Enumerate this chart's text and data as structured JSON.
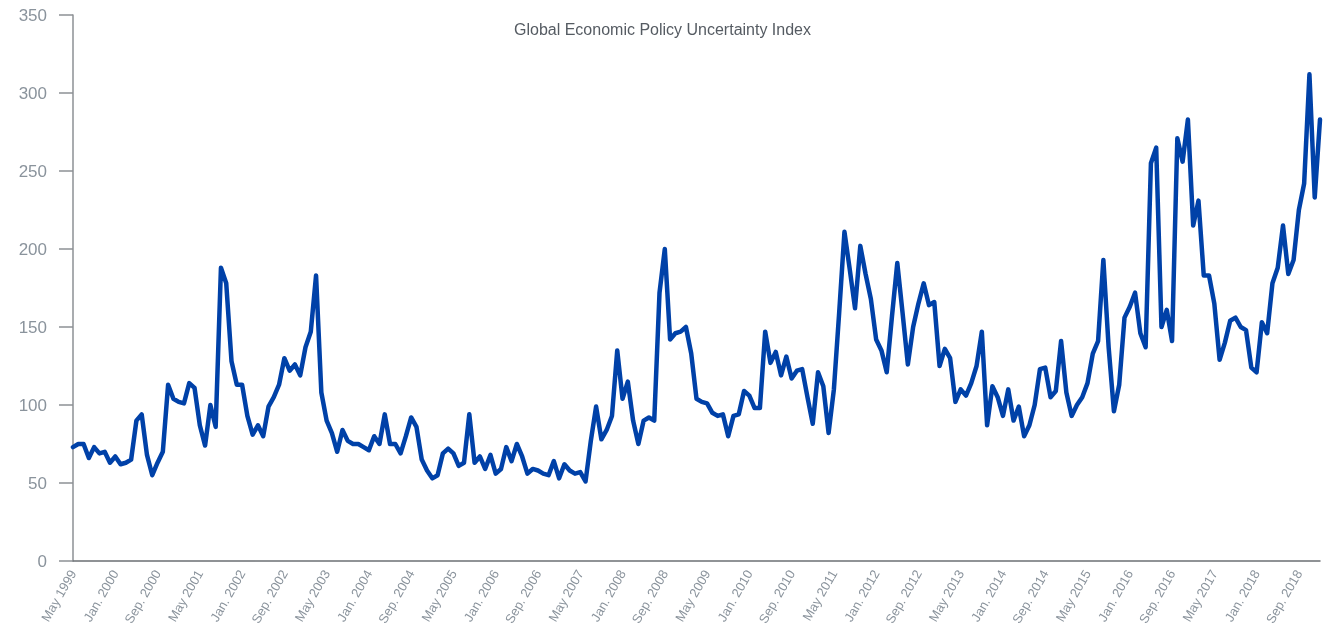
{
  "chart_data": {
    "type": "line",
    "title": "Global Economic Policy Uncertainty Index",
    "categories": [
      "May 1999",
      null,
      null,
      null,
      null,
      null,
      null,
      null,
      "Jan. 2000",
      null,
      null,
      null,
      null,
      null,
      null,
      null,
      "Sep. 2000",
      null,
      null,
      null,
      null,
      null,
      null,
      null,
      "May 2001",
      null,
      null,
      null,
      null,
      null,
      null,
      null,
      "Jan. 2002",
      null,
      null,
      null,
      null,
      null,
      null,
      null,
      "Sep. 2002",
      null,
      null,
      null,
      null,
      null,
      null,
      null,
      "May 2003",
      null,
      null,
      null,
      null,
      null,
      null,
      null,
      "Jan. 2004",
      null,
      null,
      null,
      null,
      null,
      null,
      null,
      "Sep. 2004",
      null,
      null,
      null,
      null,
      null,
      null,
      null,
      "May 2005",
      null,
      null,
      null,
      null,
      null,
      null,
      null,
      "Jan. 2006",
      null,
      null,
      null,
      null,
      null,
      null,
      null,
      "Sep. 2006",
      null,
      null,
      null,
      null,
      null,
      null,
      null,
      "May 2007",
      null,
      null,
      null,
      null,
      null,
      null,
      null,
      "Jan. 2008",
      null,
      null,
      null,
      null,
      null,
      null,
      null,
      "Sep. 2008",
      null,
      null,
      null,
      null,
      null,
      null,
      null,
      "May 2009",
      null,
      null,
      null,
      null,
      null,
      null,
      null,
      "Jan. 2010",
      null,
      null,
      null,
      null,
      null,
      null,
      null,
      "Sep. 2010",
      null,
      null,
      null,
      null,
      null,
      null,
      null,
      "May 2011",
      null,
      null,
      null,
      null,
      null,
      null,
      null,
      "Jan. 2012",
      null,
      null,
      null,
      null,
      null,
      null,
      null,
      "Sep. 2012",
      null,
      null,
      null,
      null,
      null,
      null,
      null,
      "May 2013",
      null,
      null,
      null,
      null,
      null,
      null,
      null,
      "Jan. 2014",
      null,
      null,
      null,
      null,
      null,
      null,
      null,
      "Sep. 2014",
      null,
      null,
      null,
      null,
      null,
      null,
      null,
      "May 2015",
      null,
      null,
      null,
      null,
      null,
      null,
      null,
      "Jan. 2016",
      null,
      null,
      null,
      null,
      null,
      null,
      null,
      "Sep. 2016",
      null,
      null,
      null,
      null,
      null,
      null,
      null,
      "May 2017",
      null,
      null,
      null,
      null,
      null,
      null,
      null,
      "Jan. 2018",
      null,
      null,
      null,
      null,
      null,
      null,
      null,
      "Sep. 2018",
      null,
      null,
      null,
      null
    ],
    "series": [
      {
        "color": "#0041a8",
        "values": [
          73,
          75,
          75,
          66,
          73,
          69,
          70,
          63,
          67,
          62,
          63,
          65,
          90,
          94,
          68,
          55,
          63,
          70,
          113,
          104,
          102,
          101,
          114,
          111,
          87,
          74,
          100,
          86,
          188,
          178,
          128,
          113,
          113,
          93,
          81,
          87,
          80,
          99,
          105,
          113,
          130,
          122,
          126,
          119,
          137,
          147,
          183,
          108,
          90,
          82,
          70,
          84,
          77,
          75,
          75,
          73,
          71,
          80,
          75,
          94,
          75,
          75,
          69,
          80,
          92,
          86,
          65,
          58,
          53,
          55,
          69,
          72,
          69,
          61,
          63,
          94,
          63,
          67,
          59,
          68,
          56,
          59,
          73,
          64,
          75,
          67,
          56,
          59,
          58,
          56,
          55,
          64,
          53,
          62,
          58,
          56,
          57,
          51,
          77,
          99,
          78,
          84,
          93,
          135,
          104,
          115,
          90,
          75,
          90,
          92,
          90,
          172,
          200,
          142,
          146,
          147,
          150,
          133,
          104,
          102,
          101,
          95,
          93,
          94,
          80,
          93,
          94,
          109,
          106,
          98,
          98,
          147,
          127,
          134,
          119,
          131,
          117,
          122,
          123,
          105,
          88,
          121,
          112,
          82,
          110,
          159,
          211,
          187,
          162,
          202,
          184,
          168,
          142,
          135,
          121,
          157,
          191,
          159,
          126,
          150,
          165,
          178,
          164,
          166,
          125,
          136,
          130,
          102,
          110,
          106,
          114,
          125,
          147,
          87,
          112,
          105,
          93,
          110,
          90,
          99,
          80,
          87,
          100,
          123,
          124,
          105,
          109,
          141,
          108,
          93,
          100,
          105,
          114,
          133,
          141,
          193,
          137,
          96,
          113,
          156,
          163,
          172,
          146,
          137,
          255,
          265,
          150,
          161,
          141,
          271,
          256,
          283,
          215,
          231,
          183,
          183,
          165,
          129,
          140,
          154,
          156,
          150,
          148,
          124,
          121,
          153,
          146,
          178,
          188,
          215,
          184,
          193,
          225,
          242,
          312,
          233,
          283
        ]
      }
    ],
    "ylim": [
      0,
      350
    ],
    "yticks": [
      0,
      50,
      100,
      150,
      200,
      250,
      300,
      350
    ],
    "grid": false,
    "marker": "none",
    "line_style": "solid"
  }
}
